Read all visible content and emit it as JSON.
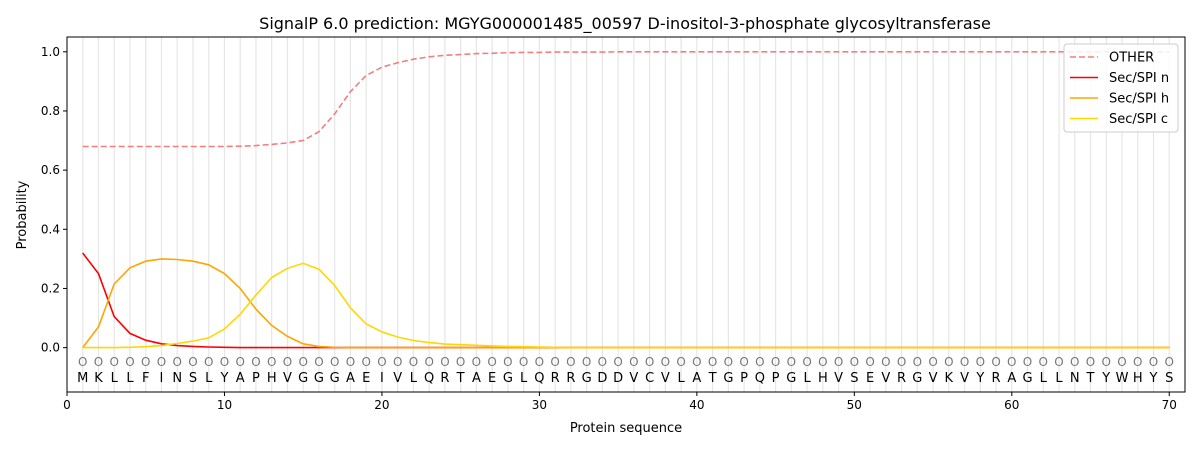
{
  "chart_data": {
    "type": "line",
    "title": "SignalP 6.0 prediction: MGYG000001485_00597 D-inositol-3-phosphate glycosyltransferase",
    "xlabel": "Protein sequence",
    "ylabel": "Probability",
    "xlim": [
      0,
      71
    ],
    "ylim": [
      -0.15,
      1.05
    ],
    "xticks": [
      0,
      10,
      20,
      30,
      40,
      50,
      60,
      70
    ],
    "yticks": [
      0.0,
      0.2,
      0.4,
      0.6,
      0.8,
      1.0
    ],
    "legend_position": "top-right",
    "sequence": [
      "M",
      "K",
      "L",
      "L",
      "F",
      "I",
      "N",
      "S",
      "L",
      "Y",
      "A",
      "P",
      "H",
      "V",
      "G",
      "G",
      "G",
      "A",
      "E",
      "I",
      "V",
      "L",
      "Q",
      "R",
      "T",
      "A",
      "E",
      "G",
      "L",
      "Q",
      "R",
      "R",
      "G",
      "D",
      "D",
      "V",
      "C",
      "V",
      "L",
      "A",
      "T",
      "G",
      "P",
      "Q",
      "P",
      "G",
      "L",
      "H",
      "V",
      "S",
      "E",
      "V",
      "R",
      "G",
      "V",
      "K",
      "V",
      "Y",
      "R",
      "A",
      "G",
      "L",
      "L",
      "N",
      "T",
      "Y",
      "W",
      "H",
      "Y",
      "S"
    ],
    "position_label": "O",
    "series": [
      {
        "name": "OTHER",
        "color": "#f08080",
        "dashed": true,
        "values": [
          0.68,
          0.68,
          0.68,
          0.68,
          0.68,
          0.68,
          0.68,
          0.68,
          0.68,
          0.68,
          0.681,
          0.683,
          0.687,
          0.692,
          0.7,
          0.73,
          0.79,
          0.865,
          0.92,
          0.948,
          0.963,
          0.975,
          0.983,
          0.988,
          0.991,
          0.994,
          0.995,
          0.997,
          0.998,
          0.998,
          0.999,
          0.999,
          0.999,
          0.999,
          1,
          1,
          1,
          1,
          1,
          1,
          1,
          1,
          1,
          1,
          1,
          1,
          1,
          1,
          1,
          1,
          1,
          1,
          1,
          1,
          1,
          1,
          1,
          1,
          1,
          1,
          1,
          1,
          1,
          1,
          1,
          1,
          1,
          1,
          1,
          1
        ]
      },
      {
        "name": "Sec/SPI n",
        "color": "#ff0000",
        "dashed": false,
        "values": [
          0.32,
          0.25,
          0.105,
          0.048,
          0.025,
          0.013,
          0.007,
          0.004,
          0.002,
          0.001,
          0,
          0,
          0,
          0,
          0,
          0,
          0,
          0,
          0,
          0,
          0,
          0,
          0,
          0,
          0,
          0,
          0,
          0,
          0,
          0,
          0,
          0,
          0,
          0,
          0,
          0,
          0,
          0,
          0,
          0,
          0,
          0,
          0,
          0,
          0,
          0,
          0,
          0,
          0,
          0,
          0,
          0,
          0,
          0,
          0,
          0,
          0,
          0,
          0,
          0,
          0,
          0,
          0,
          0,
          0,
          0,
          0,
          0,
          0,
          0
        ]
      },
      {
        "name": "Sec/SPI h",
        "color": "#ffa500",
        "dashed": false,
        "values": [
          0,
          0.07,
          0.215,
          0.27,
          0.292,
          0.3,
          0.298,
          0.292,
          0.28,
          0.25,
          0.2,
          0.13,
          0.075,
          0.038,
          0.013,
          0.004,
          0.001,
          0,
          0,
          0,
          0,
          0,
          0,
          0,
          0,
          0,
          0,
          0,
          0,
          0,
          0,
          0,
          0,
          0,
          0,
          0,
          0,
          0,
          0,
          0,
          0,
          0,
          0,
          0,
          0,
          0,
          0,
          0,
          0,
          0,
          0,
          0,
          0,
          0,
          0,
          0,
          0,
          0,
          0,
          0,
          0,
          0,
          0,
          0,
          0,
          0,
          0,
          0,
          0,
          0
        ]
      },
      {
        "name": "Sec/SPI c",
        "color": "#ffd700",
        "dashed": false,
        "values": [
          0,
          0,
          0,
          0.001,
          0.003,
          0.007,
          0.014,
          0.022,
          0.033,
          0.063,
          0.113,
          0.178,
          0.237,
          0.268,
          0.285,
          0.265,
          0.21,
          0.135,
          0.08,
          0.053,
          0.036,
          0.024,
          0.017,
          0.012,
          0.01,
          0.008,
          0.006,
          0.004,
          0.003,
          0.002,
          0.001,
          0,
          0,
          0,
          0,
          0,
          0,
          0,
          0,
          0,
          0,
          0,
          0,
          0,
          0,
          0,
          0,
          0,
          0,
          0,
          0,
          0,
          0,
          0,
          0,
          0,
          0,
          0,
          0,
          0,
          0,
          0,
          0,
          0,
          0,
          0,
          0,
          0,
          0,
          0
        ]
      }
    ]
  }
}
